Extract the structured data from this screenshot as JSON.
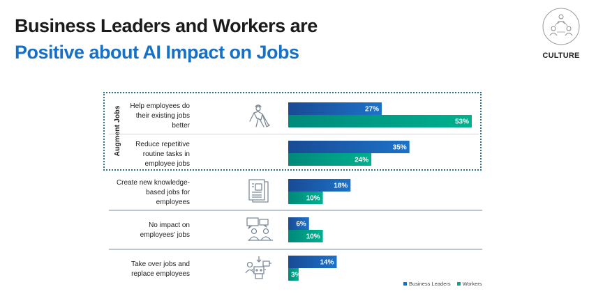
{
  "header": {
    "title_line1": "Business Leaders and Workers are",
    "title_line2": "Positive about AI Impact on Jobs"
  },
  "badge": {
    "label": "CULTURE",
    "icon": "people-network-icon"
  },
  "group": {
    "label": "Augment Jobs"
  },
  "colors": {
    "business_leaders": "#1670c6",
    "workers": "#00a98a",
    "title_accent": "#1670c6"
  },
  "chart_data": {
    "type": "bar",
    "orientation": "horizontal",
    "title": "",
    "categories": [
      "Help employees do their existing jobs better",
      "Reduce repetitive routine tasks in employee jobs",
      "Create new knowledge-based jobs for employees",
      "No impact on employees' jobs",
      "Take over jobs and replace employees"
    ],
    "category_lines": [
      [
        "Help employees do",
        "their existing jobs",
        "better"
      ],
      [
        "Reduce repetitive",
        "routine tasks in",
        "employee jobs"
      ],
      [
        "Create new knowledge-",
        "based jobs for",
        "employees"
      ],
      [
        "No impact on",
        "employees' jobs"
      ],
      [
        "Take over jobs and",
        "replace employees"
      ]
    ],
    "series": [
      {
        "name": "Business Leaders",
        "values": [
          27,
          35,
          18,
          6,
          14
        ]
      },
      {
        "name": "Workers",
        "values": [
          53,
          24,
          10,
          10,
          3
        ]
      }
    ],
    "value_labels": {
      "Business Leaders": [
        "27%",
        "35%",
        "18%",
        "6%",
        "14%"
      ],
      "Workers": [
        "53%",
        "24%",
        "10%",
        "10%",
        "3%"
      ]
    },
    "xlim": [
      0,
      53
    ],
    "grid": false,
    "legend": "bottom-right",
    "icons": [
      "worker-shovel-icon",
      "worker-shovel-icon",
      "document-icon",
      "meeting-people-icon",
      "robot-person-icon"
    ]
  }
}
